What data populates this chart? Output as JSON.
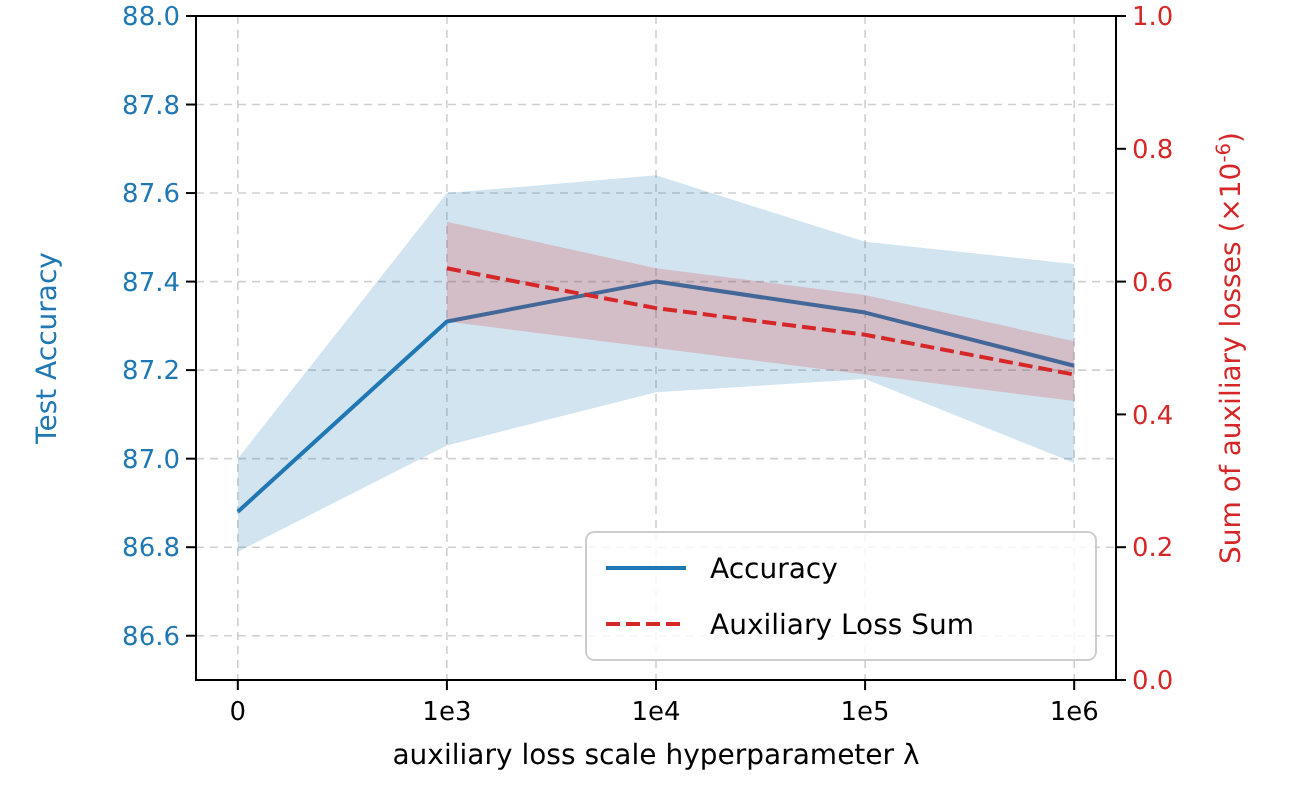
{
  "chart_data": {
    "type": "line",
    "categories": [
      "0",
      "1e3",
      "1e4",
      "1e5",
      "1e6"
    ],
    "xlabel": "auxiliary loss scale hyperparameter λ",
    "ylabel": "Test Accuracy",
    "y2label": "Sum of auxiliary losses (×10$^{-6}$)",
    "ylim": [
      86.5,
      88.0
    ],
    "yticks": [
      86.6,
      86.8,
      {
        "value": 87,
        "label": "87.0"
      },
      87.2,
      87.4,
      87.6,
      87.8,
      {
        "value": 88,
        "label": "88.0"
      }
    ],
    "y2lim": [
      0,
      1.0
    ],
    "y2ticks": [
      {
        "value": 0,
        "label": "0.0"
      },
      0.2,
      0.4,
      0.6,
      0.8,
      {
        "value": 1,
        "label": "1.0"
      }
    ],
    "grid": true,
    "legend": "bottom right",
    "marker": "none",
    "series": [
      {
        "name": "Accuracy",
        "color": "#1f77b4",
        "line_style": "solid",
        "values": [
          86.88,
          87.31,
          87.4,
          87.33,
          87.21
        ],
        "lower": [
          86.79,
          87.03,
          87.15,
          87.18,
          86.99
        ],
        "upper": [
          87.0,
          87.6,
          87.64,
          87.49,
          87.44
        ]
      },
      {
        "name": "Auxiliary Loss Sum",
        "color": "#d62728",
        "line_style": "dashed",
        "axis": "y2",
        "values": [
          null,
          0.62,
          0.56,
          0.52,
          0.46
        ],
        "lower": [
          null,
          0.54,
          0.5,
          0.46,
          0.42
        ],
        "upper": [
          null,
          0.69,
          0.62,
          0.58,
          0.51
        ]
      }
    ]
  }
}
